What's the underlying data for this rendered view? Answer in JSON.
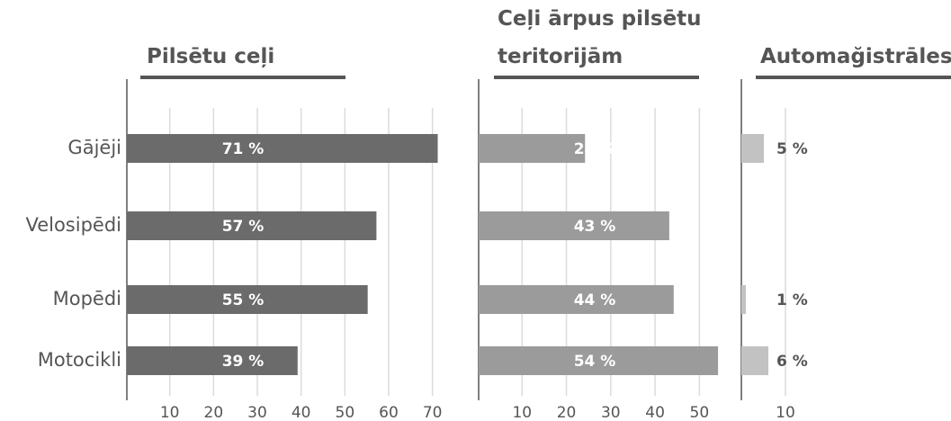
{
  "chart_data": [
    {
      "type": "bar",
      "orientation": "horizontal",
      "title": "Pilsētu ceļi",
      "categories": [
        "Gājēji",
        "Velosipēdi",
        "Mopēdi",
        "Motocikli"
      ],
      "values": [
        71,
        57,
        55,
        39
      ],
      "value_labels": [
        "71 %",
        "57 %",
        "55 %",
        "39 %"
      ],
      "color": "#6b6b6b",
      "value_label_position": "inside",
      "xlim": [
        0,
        75
      ],
      "xticks": [
        10,
        20,
        30,
        40,
        50,
        60,
        70
      ],
      "grid": true
    },
    {
      "type": "bar",
      "orientation": "horizontal",
      "title": [
        "Ceļi ārpus pilsētu",
        "teritorijām"
      ],
      "values": [
        24,
        43,
        44,
        54
      ],
      "value_labels": [
        "24 %",
        "43 %",
        "44 %",
        "54 %"
      ],
      "color": "#9b9b9b",
      "value_label_position": "inside",
      "xlim": [
        0,
        55
      ],
      "xticks": [
        10,
        20,
        30,
        40,
        50
      ],
      "grid": true
    },
    {
      "type": "bar",
      "orientation": "horizontal",
      "title": "Automağistrāles",
      "values": [
        5,
        null,
        1,
        6
      ],
      "value_labels": [
        "5 %",
        null,
        "1 %",
        "6 %"
      ],
      "color": "#c2c2c2",
      "value_label_position": "outside",
      "xlim": [
        0,
        10
      ],
      "xticks": [
        10
      ],
      "grid": true
    }
  ]
}
